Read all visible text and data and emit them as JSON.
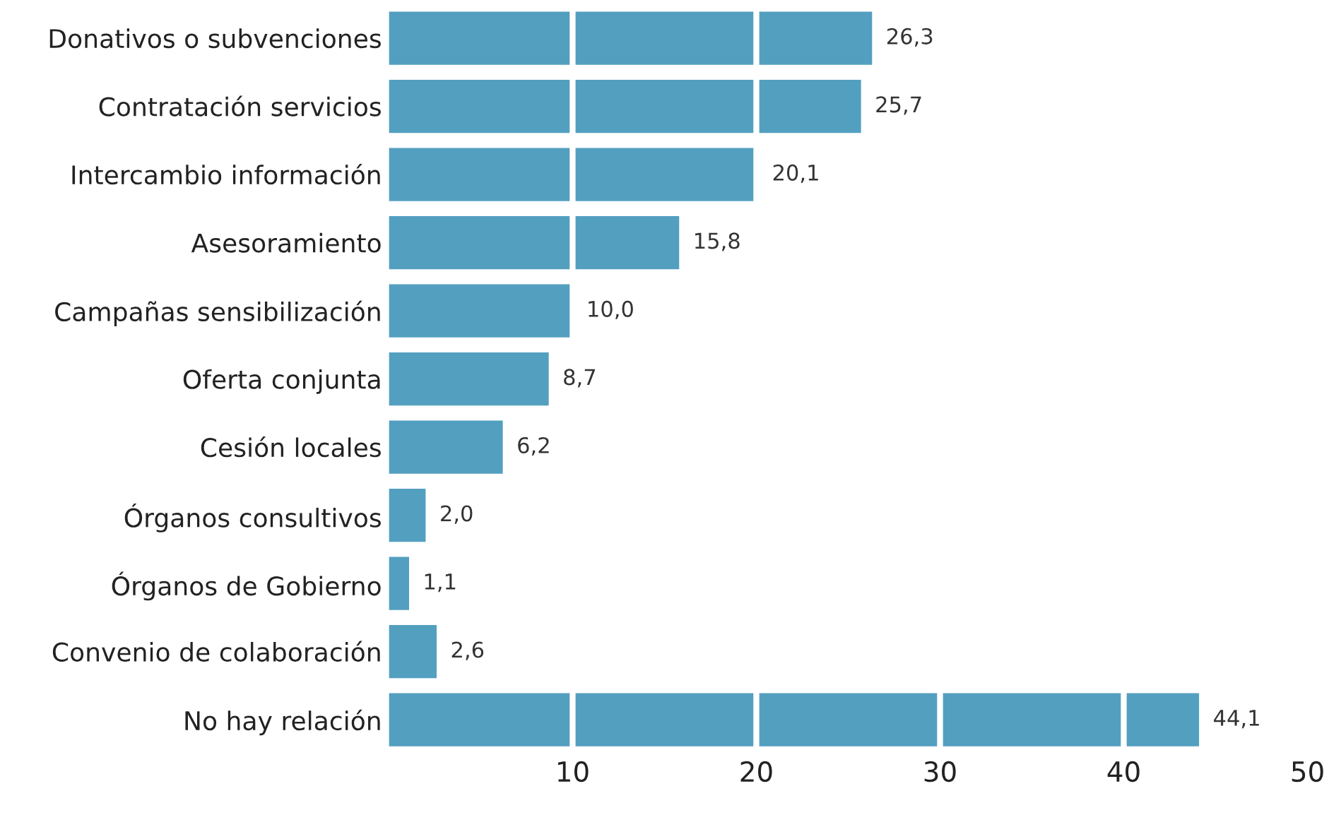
{
  "chart_data": {
    "type": "bar",
    "orientation": "horizontal",
    "categories": [
      "Donativos o subvenciones",
      "Contratación servicios",
      "Intercambio información",
      "Asesoramiento",
      "Campañas sensibilización",
      "Oferta conjunta",
      "Cesión locales",
      "Órganos consultivos",
      "Órganos de Gobierno",
      "Convenio de colaboración",
      "No hay relación"
    ],
    "values": [
      26.3,
      25.7,
      20.1,
      15.8,
      10.0,
      8.7,
      6.2,
      2.0,
      1.1,
      2.6,
      44.1
    ],
    "value_labels": [
      "26,3",
      "25,7",
      "20,1",
      "15,8",
      "10,0",
      "8,7",
      "6,2",
      "2,0",
      "1,1",
      "2,6",
      "44,1"
    ],
    "color": "#539fc0",
    "xlim": [
      0,
      50
    ],
    "xticks": [
      10,
      20,
      30,
      40,
      50
    ],
    "grid": "x"
  }
}
